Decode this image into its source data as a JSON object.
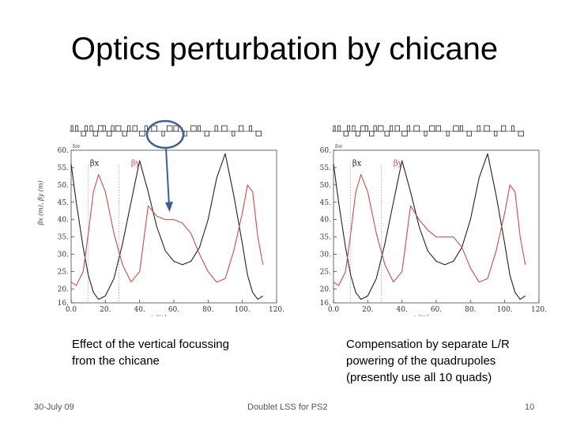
{
  "slide": {
    "title": "Optics perturbation by chicane",
    "caption_left_lines": [
      "Effect of the vertical focussing",
      "from the chicane"
    ],
    "caption_right_lines": [
      "Compensation by separate L/R",
      "powering of the quadrupoles",
      "(presently use all 10 quads)"
    ],
    "footer_date": "30-July 09",
    "footer_center": "Doublet LSS for PS2",
    "page_number": "10"
  },
  "colors": {
    "beta_x": "#222222",
    "beta_y": "#c0504d",
    "marker_circle": "#3f5f8f"
  },
  "icons": [
    "magnet-lattice-strip",
    "highlight-circle",
    "arrow-down-icon"
  ],
  "chart_data": [
    {
      "type": "line",
      "title": "",
      "xlabel": "s (m)",
      "ylabel": "βx (m), βy (m)",
      "unit_label": "fov",
      "xlim": [
        0,
        120
      ],
      "ylim": [
        16,
        60
      ],
      "xticks": [
        "0.0",
        "20.",
        "40.",
        "60.",
        "80.",
        "100.",
        "120."
      ],
      "yticks": [
        "16.",
        "20.",
        "25.",
        "30.",
        "35.",
        "40.",
        "45.",
        "50.",
        "55.",
        "60."
      ],
      "series": [
        {
          "name": "βx",
          "x": [
            0,
            3,
            7,
            10,
            13,
            16,
            20,
            25,
            30,
            35,
            40,
            45,
            50,
            55,
            60,
            65,
            70,
            75,
            80,
            85,
            90,
            95,
            100,
            103,
            106,
            109,
            112
          ],
          "y": [
            56,
            45,
            32,
            24,
            19,
            17,
            18,
            23,
            33,
            45,
            57,
            48,
            38,
            31,
            28,
            27,
            28,
            32,
            40,
            52,
            59,
            47,
            33,
            24,
            19,
            17,
            18
          ]
        },
        {
          "name": "βy",
          "x": [
            0,
            3,
            7,
            10,
            13,
            16,
            20,
            25,
            30,
            35,
            40,
            45,
            50,
            55,
            60,
            65,
            70,
            75,
            80,
            85,
            90,
            95,
            100,
            103,
            106,
            109,
            112
          ],
          "y": [
            22,
            21,
            25,
            36,
            48,
            53,
            48,
            36,
            27,
            22,
            25,
            44,
            41,
            40,
            40,
            39,
            36,
            30,
            25,
            22,
            23,
            31,
            42,
            50,
            48,
            35,
            27
          ]
        }
      ],
      "annotations": [
        "βx",
        "βy"
      ]
    },
    {
      "type": "line",
      "title": "",
      "xlabel": "s (m)",
      "ylabel": "",
      "unit_label": "fov",
      "xlim": [
        0,
        120
      ],
      "ylim": [
        16,
        60
      ],
      "xticks": [
        "0.0",
        "20.",
        "40.",
        "60.",
        "80.",
        "100.",
        "120."
      ],
      "yticks": [
        "16.",
        "20.",
        "25.",
        "30.",
        "35.",
        "40.",
        "45.",
        "50.",
        "55.",
        "60."
      ],
      "series": [
        {
          "name": "βx",
          "x": [
            0,
            3,
            7,
            10,
            13,
            16,
            20,
            25,
            30,
            35,
            40,
            45,
            50,
            55,
            60,
            65,
            70,
            75,
            80,
            85,
            90,
            95,
            100,
            103,
            106,
            109,
            112
          ],
          "y": [
            56,
            45,
            32,
            24,
            19,
            17,
            18,
            23,
            33,
            45,
            57,
            48,
            38,
            31,
            28,
            27,
            28,
            32,
            40,
            52,
            59,
            47,
            33,
            24,
            19,
            17,
            18
          ]
        },
        {
          "name": "βy",
          "x": [
            0,
            3,
            7,
            10,
            13,
            16,
            20,
            25,
            30,
            35,
            40,
            45,
            50,
            55,
            60,
            65,
            70,
            75,
            80,
            85,
            90,
            95,
            100,
            103,
            106,
            109,
            112
          ],
          "y": [
            22,
            21,
            25,
            36,
            48,
            53,
            48,
            36,
            27,
            22,
            25,
            44,
            40,
            37,
            35,
            35,
            35,
            32,
            26,
            22,
            23,
            31,
            42,
            50,
            48,
            35,
            27
          ]
        }
      ],
      "annotations": [
        "βx",
        "βy"
      ]
    }
  ]
}
